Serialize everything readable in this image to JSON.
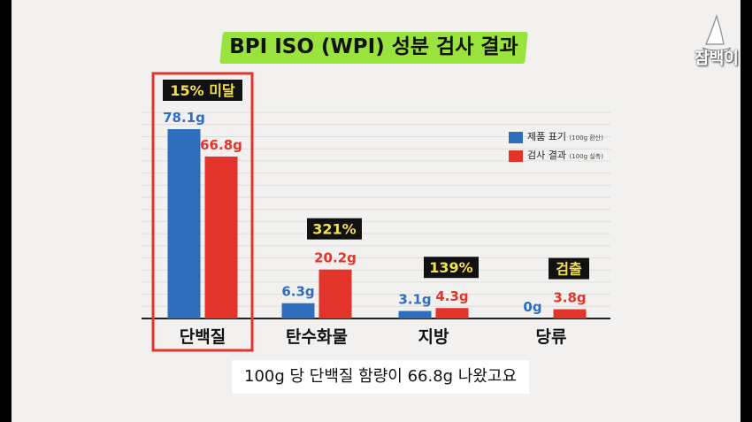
{
  "header": {
    "title": "BPI ISO (WPI) 성분 검사 결과"
  },
  "logo": {
    "text": "잠백이",
    "icon": "sailboat-logo-icon"
  },
  "caption": "100g 당 단백질 함량이 66.8g 나왔고요",
  "colors": {
    "product": "#2e6ebd",
    "result": "#e3342b",
    "highlight": "#9ae23e",
    "badge_bg": "#111111",
    "badge_text": "#f6e04a",
    "frame": "#e3342b"
  },
  "chart_data": {
    "type": "bar",
    "categories": [
      "단백질",
      "탄수화물",
      "지방",
      "당류"
    ],
    "series": [
      {
        "name": "제품 표기",
        "name_sub": "(100g 환산)",
        "values": [
          78.1,
          6.3,
          3.1,
          0
        ],
        "labels": [
          "78.1g",
          "6.3g",
          "3.1g",
          "0g"
        ]
      },
      {
        "name": "검사 결과",
        "name_sub": "(100g 실측)",
        "values": [
          66.8,
          20.2,
          4.3,
          3.8
        ],
        "labels": [
          "66.8g",
          "20.2g",
          "4.3g",
          "3.8g"
        ]
      }
    ],
    "badges": [
      "15% 미달",
      "321%",
      "139%",
      "검출"
    ],
    "highlighted_category": "단백질",
    "legend": "top-right",
    "grid": true,
    "ylim": [
      0,
      80
    ]
  }
}
